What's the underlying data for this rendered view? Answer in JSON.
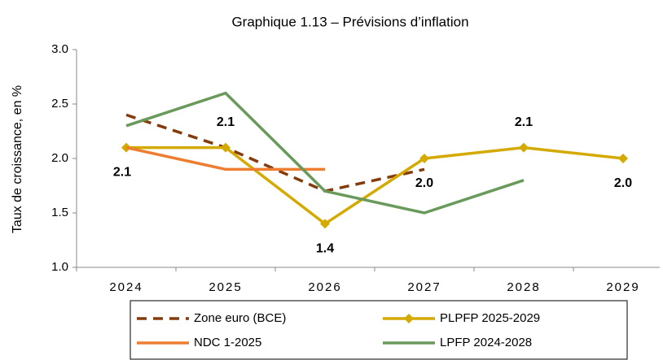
{
  "chart_data": {
    "type": "line",
    "title": "Graphique 1.13 – Prévisions d’inflation",
    "y_label": "Taux de croissance, en %",
    "categories": [
      "2024",
      "2025",
      "2026",
      "2027",
      "2028",
      "2029"
    ],
    "series": [
      {
        "name": "Zone euro (BCE)",
        "color": "#843c0c",
        "dashed": true,
        "values": [
          2.4,
          2.1,
          1.7,
          1.9,
          null,
          null
        ]
      },
      {
        "name": "PLPFP 2025-2029",
        "color": "#d4a900",
        "marker": "diamond",
        "values": [
          2.1,
          2.1,
          1.4,
          2.0,
          2.1,
          2.0
        ],
        "value_labels": [
          "2.1",
          "2.1",
          "1.4",
          "2.0",
          "2.1",
          "2.0"
        ]
      },
      {
        "name": "NDC 1-2025",
        "color": "#ed7d31",
        "values": [
          2.1,
          1.9,
          1.9,
          null,
          null,
          null
        ]
      },
      {
        "name": "LPFP 2024-2028",
        "color": "#6a9a5b",
        "values": [
          2.3,
          2.6,
          1.7,
          1.5,
          1.8,
          null
        ]
      }
    ],
    "ylim": [
      1.0,
      3.0
    ],
    "yticks": [
      {
        "value": 1.0,
        "label": "1.0"
      },
      {
        "value": 1.5,
        "label": "1.5"
      },
      {
        "value": 2.0,
        "label": "2.0"
      },
      {
        "value": 2.5,
        "label": "2.5"
      },
      {
        "value": 3.0,
        "label": "3.0"
      }
    ],
    "grid": false,
    "legend": "bottom"
  }
}
